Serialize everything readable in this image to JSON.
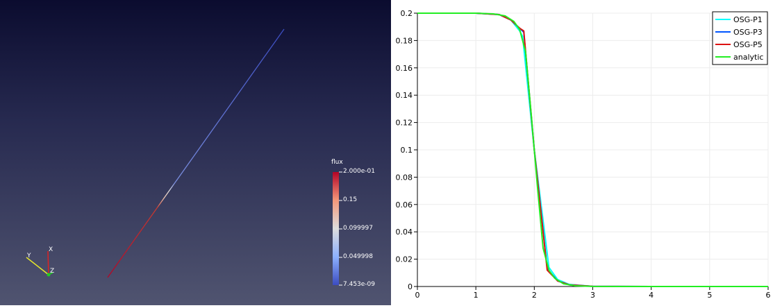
{
  "viewport": {
    "scalar_bar": {
      "title": "flux",
      "labels": [
        "2.000e-01",
        "0.15",
        "0.099997",
        "0.049998",
        "7.453e-09"
      ],
      "colors": [
        "#b40426",
        "#f4987a",
        "#dddddd",
        "#8db0fe",
        "#3b4cc0"
      ]
    },
    "axes": {
      "x": "X",
      "y": "Y",
      "z": "Z"
    }
  },
  "chart_data": {
    "type": "line",
    "title": "",
    "xlabel": "",
    "ylabel": "",
    "xlim": [
      0,
      6
    ],
    "ylim": [
      0,
      0.2
    ],
    "xticks": [
      0,
      1,
      2,
      3,
      4,
      5,
      6
    ],
    "yticks": [
      0,
      0.02,
      0.04,
      0.06,
      0.08,
      0.1,
      0.12,
      0.14,
      0.16,
      0.18,
      0.2
    ],
    "grid": true,
    "legend_position": "top-right",
    "series": [
      {
        "name": "OSG-P1",
        "color": "#00ffff",
        "x": [
          0,
          1,
          1.4,
          1.6,
          1.75,
          1.8,
          2.0,
          2.25,
          2.4,
          2.6,
          3.0,
          4.0,
          6.0
        ],
        "y": [
          0.2,
          0.2,
          0.199,
          0.195,
          0.187,
          0.183,
          0.1,
          0.014,
          0.005,
          0.0015,
          0.0001,
          0,
          0
        ]
      },
      {
        "name": "OSG-P3",
        "color": "#0055ff",
        "x": [
          0,
          1,
          1.4,
          1.6,
          1.75,
          1.82,
          2.0,
          2.22,
          2.4,
          2.6,
          3.0,
          4.0,
          6.0
        ],
        "y": [
          0.2,
          0.2,
          0.199,
          0.195,
          0.189,
          0.186,
          0.1,
          0.013,
          0.004,
          0.0012,
          0.0001,
          0,
          0
        ]
      },
      {
        "name": "OSG-P5",
        "color": "#dd1111",
        "x": [
          0,
          1,
          1.4,
          1.6,
          1.75,
          1.82,
          2.0,
          2.22,
          2.4,
          2.6,
          3.0,
          4.0,
          6.0
        ],
        "y": [
          0.2,
          0.2,
          0.199,
          0.195,
          0.189,
          0.187,
          0.1,
          0.012,
          0.004,
          0.0012,
          0.0001,
          0,
          0
        ]
      },
      {
        "name": "analytic",
        "color": "#22ee22",
        "x": [
          0,
          1,
          1.3,
          1.5,
          1.65,
          1.75,
          1.85,
          1.95,
          2.0,
          2.05,
          2.15,
          2.25,
          2.35,
          2.5,
          2.7,
          3.0,
          4.0,
          6.0
        ],
        "y": [
          0.2,
          0.2,
          0.1995,
          0.198,
          0.194,
          0.188,
          0.172,
          0.125,
          0.1,
          0.075,
          0.028,
          0.012,
          0.006,
          0.002,
          0.0005,
          5e-05,
          0,
          0
        ]
      }
    ]
  }
}
